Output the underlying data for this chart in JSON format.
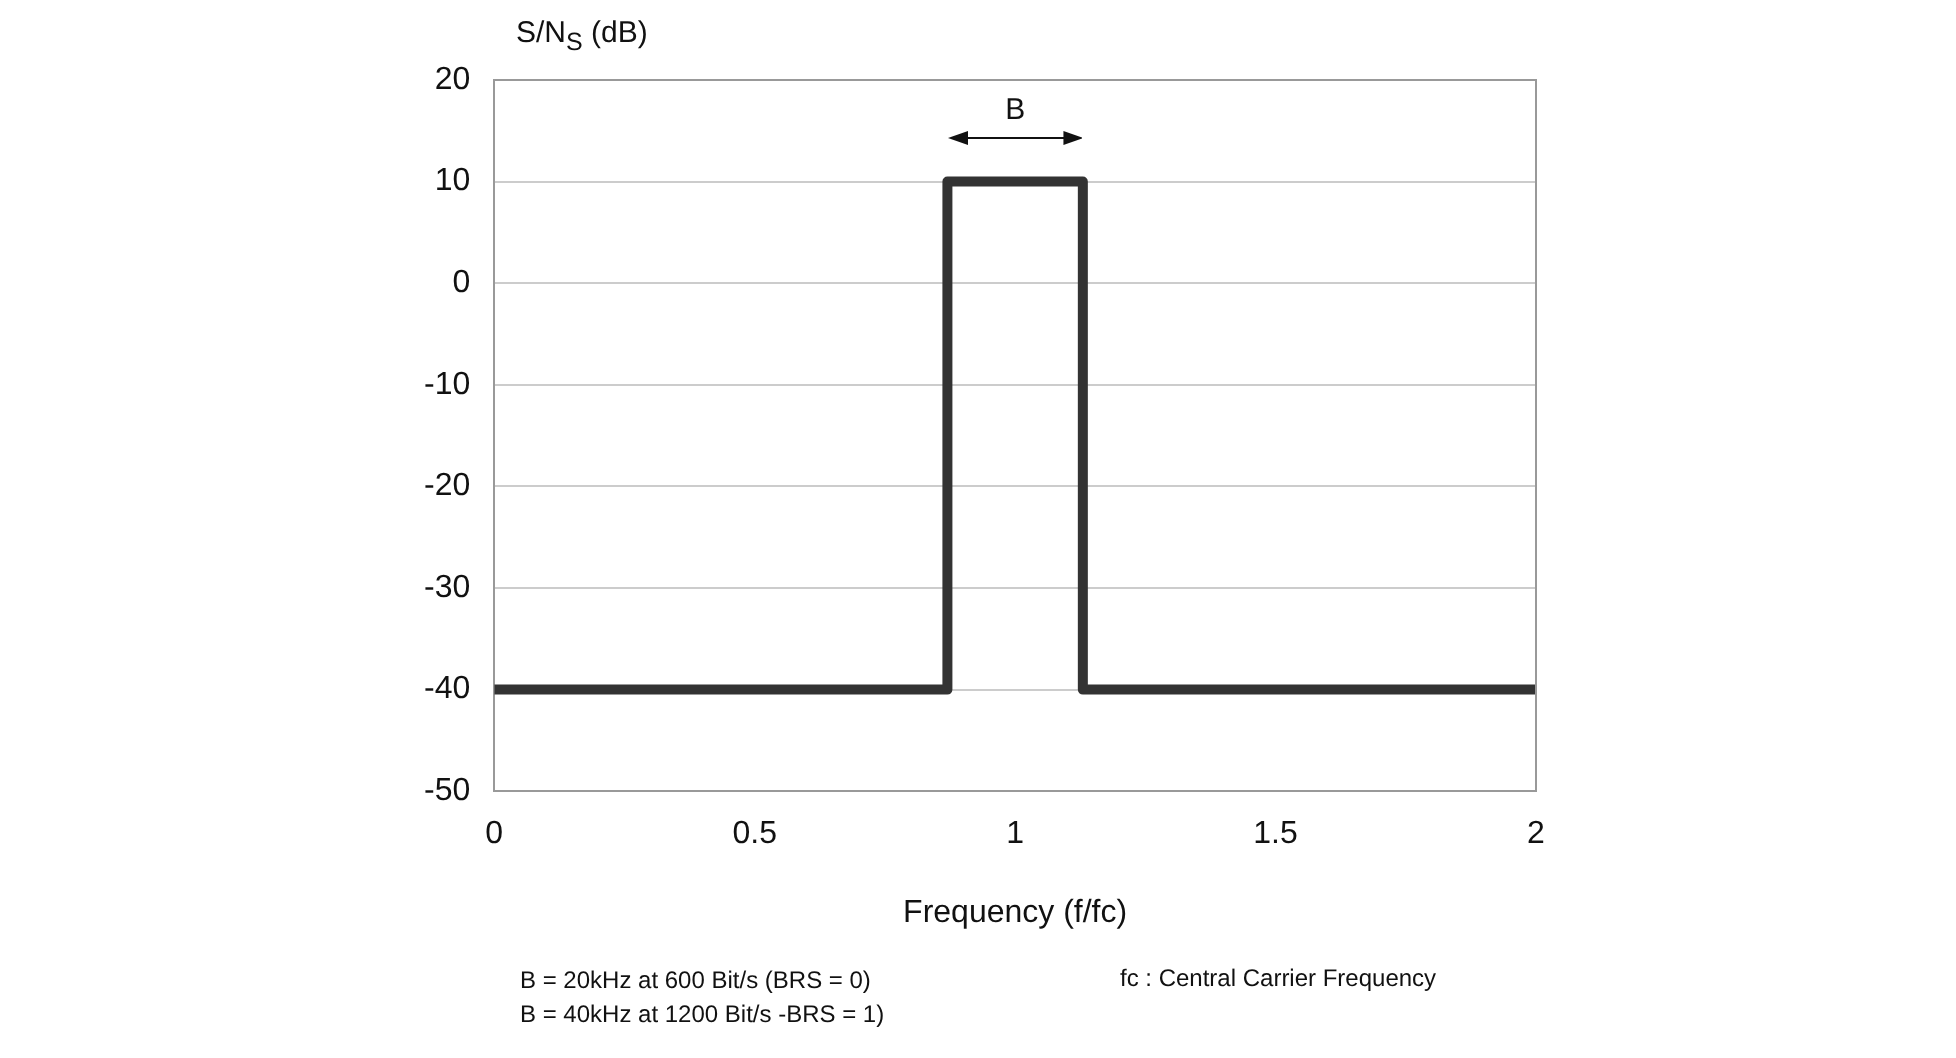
{
  "chart_data": {
    "type": "line",
    "xlabel": "Frequency (f/fc)",
    "ylabel": "S/N$_{S}$ (dB)",
    "series": [
      {
        "color": "#333333",
        "x": [
          0,
          0.87,
          0.87,
          1.13,
          1.13,
          2
        ],
        "values": [
          -40,
          -40,
          10,
          10,
          -40,
          -40
        ]
      }
    ],
    "xlim": [
      0,
      2
    ],
    "xticks": [
      0,
      0.5,
      1,
      1.5,
      2
    ],
    "ylim": [
      -50,
      20
    ],
    "yticks": [
      -50,
      -40,
      -30,
      -20,
      -10,
      0,
      10,
      20
    ],
    "grid": "y",
    "legend": false,
    "marker": "none",
    "line_style": "solid",
    "annotations": [
      "B",
      "B = 20kHz at 600 Bit/s (BRS = 0)",
      "B = 40kHz at 1200 Bit/s -BRS = 1)",
      "fc : Central Carrier Frequency"
    ]
  }
}
